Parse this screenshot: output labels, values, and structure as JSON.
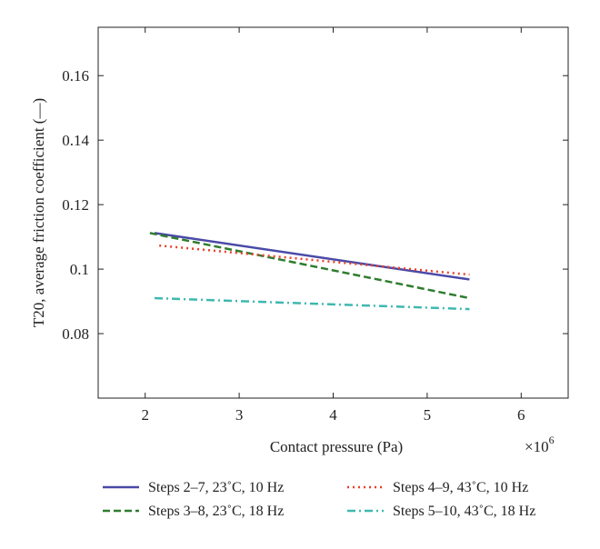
{
  "chart_data": {
    "type": "line",
    "title": "",
    "xlabel": "Contact pressure (Pa)",
    "ylabel": "T20, average friction coefficient (—)",
    "x_multiplier_base": "×10",
    "x_multiplier_exp": "6",
    "xlim": [
      1.5,
      6.5
    ],
    "ylim": [
      0.06,
      0.175
    ],
    "x_ticks": [
      2,
      3,
      4,
      5,
      6
    ],
    "x_tick_labels": [
      "2",
      "3",
      "4",
      "5",
      "6"
    ],
    "y_ticks": [
      0.08,
      0.1,
      0.12,
      0.14,
      0.16
    ],
    "y_tick_labels": [
      "0.08",
      "0.1",
      "0.12",
      "0.14",
      "0.16"
    ],
    "grid": false,
    "legend_position": "bottom",
    "series": [
      {
        "name": "Steps 2–7, 23˚C, 10 Hz",
        "color": "#4a4aa8",
        "dash": "solid",
        "x": [
          2.1,
          5.45
        ],
        "y": [
          0.1112,
          0.0968
        ]
      },
      {
        "name": "Steps 3–8, 23˚C, 18 Hz",
        "color": "#2e7d2e",
        "dash": "dashed",
        "x": [
          2.05,
          5.45
        ],
        "y": [
          0.1112,
          0.091
        ]
      },
      {
        "name": "Steps 4–9, 43˚C, 10 Hz",
        "color": "#e8402a",
        "dash": "dotted",
        "x": [
          2.15,
          5.45
        ],
        "y": [
          0.1073,
          0.0983
        ]
      },
      {
        "name": "Steps 5–10, 43˚C, 18 Hz",
        "color": "#3fb8b0",
        "dash": "dashdot",
        "x": [
          2.1,
          5.45
        ],
        "y": [
          0.091,
          0.0876
        ]
      }
    ]
  }
}
